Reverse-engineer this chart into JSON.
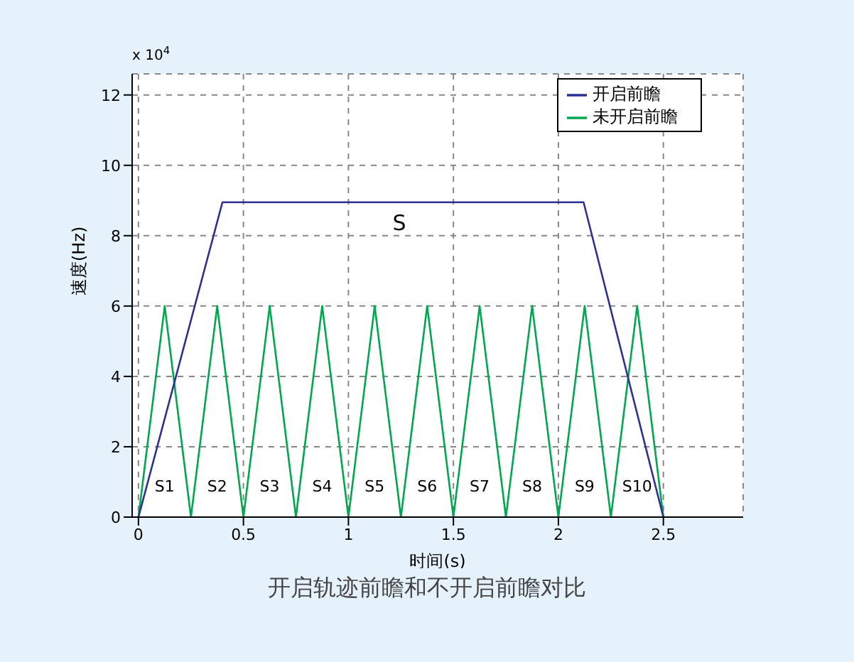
{
  "chart_data": {
    "type": "line",
    "title": "开启轨迹前瞻和不开启前瞻对比",
    "xlabel": "时间(s)",
    "ylabel": "速度(Hz)",
    "series": [
      {
        "name": "未开启前瞻",
        "color": "#00a650",
        "x": [
          0,
          0.125,
          0.25,
          0.375,
          0.5,
          0.625,
          0.75,
          0.875,
          1,
          1.125,
          1.25,
          1.375,
          1.5,
          1.625,
          1.75,
          1.875,
          2,
          2.125,
          2.25,
          2.375,
          2.5
        ],
        "values": [
          0,
          6,
          0,
          6,
          0,
          6,
          0,
          6,
          0,
          6,
          0,
          6,
          0,
          6,
          0,
          6,
          0,
          6,
          0,
          6,
          0
        ]
      },
      {
        "name": "开启前瞻",
        "color": "#2e3192",
        "x": [
          0,
          0.4,
          2.12,
          2.5
        ],
        "values": [
          0,
          8.95,
          8.95,
          0
        ]
      }
    ],
    "xlim": [
      -0.03,
      2.88
    ],
    "xticks": [
      0,
      0.5,
      1,
      1.5,
      2,
      2.5
    ],
    "ylim": [
      0,
      12.6
    ],
    "yticks": [
      0,
      2,
      4,
      6,
      8,
      10,
      12
    ],
    "grid": true,
    "legend": "top right",
    "line_style": "solid",
    "marker": "none",
    "annotations": [
      "x 10$^{4}$",
      "S",
      "S1",
      "S2",
      "S3",
      "S4",
      "S5",
      "S6",
      "S7",
      "S8",
      "S9",
      "S10"
    ]
  }
}
